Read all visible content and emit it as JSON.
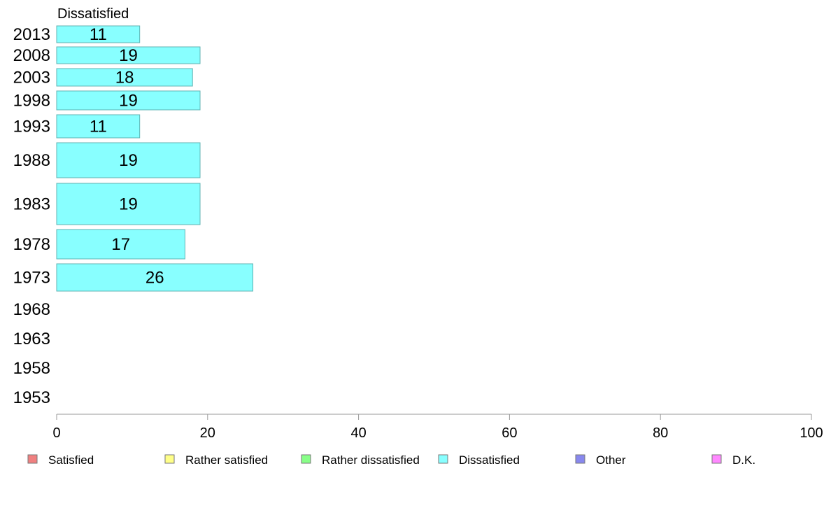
{
  "chart_data": {
    "type": "bar",
    "orientation": "horizontal",
    "title": "Dissatisfied",
    "categories": [
      "2013",
      "2008",
      "2003",
      "1998",
      "1993",
      "1988",
      "1983",
      "1978",
      "1973",
      "1968",
      "1963",
      "1958",
      "1953"
    ],
    "values": [
      11,
      19,
      18,
      19,
      11,
      19,
      19,
      17,
      26,
      null,
      null,
      null,
      null
    ],
    "data_labels": [
      "11",
      "19",
      "18",
      "19",
      "11",
      "19",
      "19",
      "17",
      "26",
      "",
      "",
      "",
      ""
    ],
    "xlim": [
      0,
      100
    ],
    "xticks": [
      "0",
      "20",
      "40",
      "60",
      "80",
      "100"
    ],
    "grid": false,
    "bar_color": "#88ffff",
    "bar_edge_color": "#5fb3b3",
    "legend_placement": "bottom",
    "legend": [
      {
        "label": "Satisfied",
        "color": "#f08080"
      },
      {
        "label": "Rather satisfied",
        "color": "#ffff88"
      },
      {
        "label": "Rather dissatisfied",
        "color": "#88ff88"
      },
      {
        "label": "Dissatisfied",
        "color": "#88ffff"
      },
      {
        "label": "Other",
        "color": "#8888ee"
      },
      {
        "label": "D.K.",
        "color": "#ff88ff"
      }
    ]
  }
}
